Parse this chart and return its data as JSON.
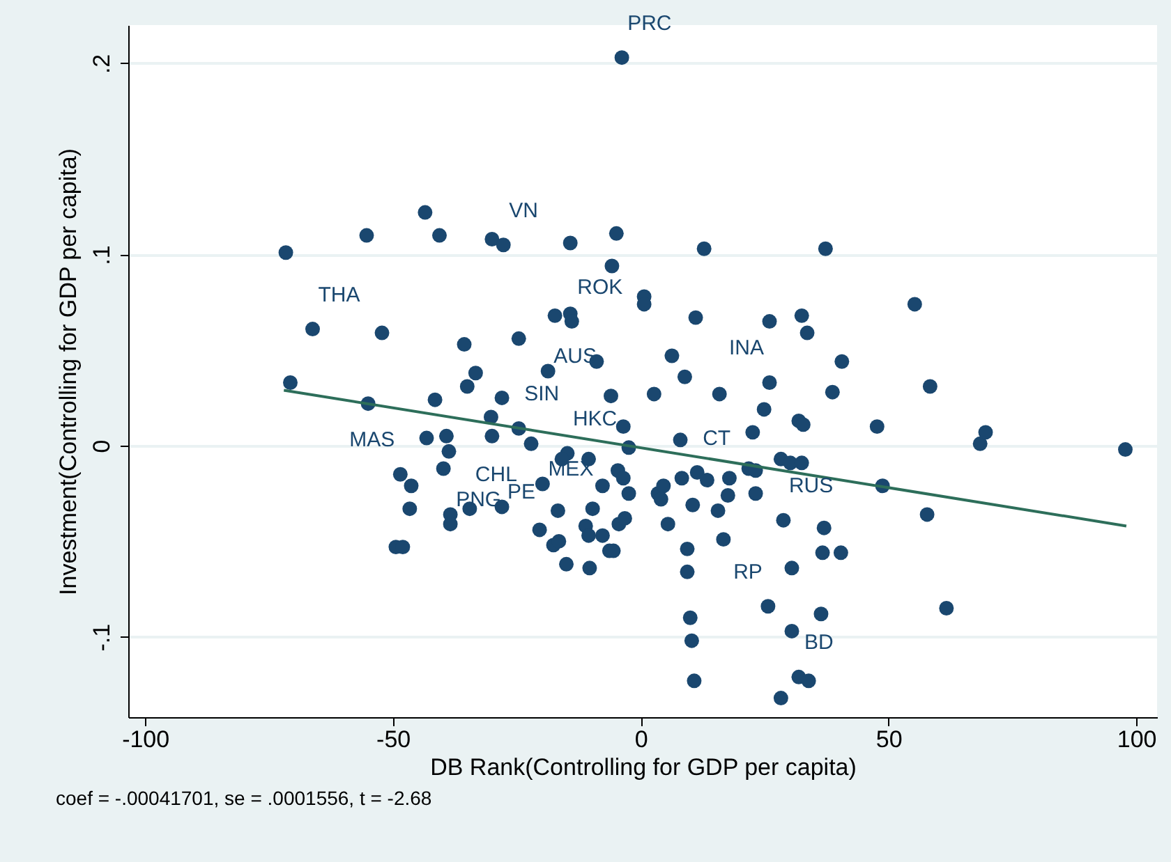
{
  "chart_data": {
    "type": "scatter",
    "xlabel": "DB Rank(Controlling for GDP per capita)",
    "ylabel": "Investment(Controlling for GDP per capita)",
    "xlim": [
      -103.4,
      104.2
    ],
    "ylim": [
      -0.142,
      0.22
    ],
    "xticks": [
      -100,
      -50,
      0,
      50,
      100
    ],
    "yticks": [
      {
        "value": -0.1,
        "label": "-.1"
      },
      {
        "value": 0,
        "label": "0"
      },
      {
        "value": 0.1,
        "label": ".1"
      },
      {
        "value": 0.2,
        "label": ".2"
      }
    ],
    "grid": "y",
    "series": [
      {
        "type": "scatter",
        "marker": "circle",
        "color": "#1a476f",
        "x": [
          -3.8,
          -71.6,
          -55.3,
          -43.5,
          -40.6,
          -30.0,
          -27.7,
          -14.2,
          -4.9,
          -5.8,
          0.7,
          0.7,
          -17.3,
          -14.2,
          -13.9,
          -66.2,
          -52.2,
          -35.6,
          -24.6,
          -8.9,
          -18.7,
          6.3,
          8.9,
          -70.7,
          -33.3,
          -35.0,
          -55.0,
          -41.5,
          -28.0,
          -6.0,
          2.7,
          -30.2,
          -3.5,
          -43.2,
          -39.2,
          -30.0,
          -24.6,
          -22.1,
          8.0,
          -38.7,
          -39.8,
          -48.5,
          -2.4,
          -14.8,
          -15.9,
          -10.5,
          -46.3,
          -46.6,
          -38.4,
          -38.4,
          -34.5,
          -28.0,
          -19.8,
          -49.4,
          -48.0,
          -20.4,
          -17.6,
          -16.5,
          -15.0,
          -16.7,
          -9.7,
          -11.1,
          -10.5,
          -7.7,
          -6.3,
          -5.5,
          -10.3,
          -7.7,
          -4.6,
          -3.5,
          -2.4,
          -4.4,
          -3.2,
          3.5,
          4.6,
          4.1,
          5.5,
          22.6,
          31.9,
          32.8,
          47.7,
          68.5,
          69.6,
          97.8,
          28.3,
          30.2,
          32.5,
          21.8,
          23.2,
          11.4,
          13.4,
          17.9,
          8.3,
          10.5,
          17.6,
          23.2,
          15.6,
          16.7,
          9.4,
          9.4,
          28.8,
          37.0,
          48.8,
          57.8,
          36.7,
          40.4,
          30.5,
          25.7,
          36.4,
          61.7,
          30.5,
          10.0,
          10.3,
          10.8,
          31.9,
          33.9,
          28.3,
          12.8,
          37.3,
          11.1,
          26.0,
          32.5,
          33.6,
          55.3,
          40.6,
          26.0,
          58.4,
          15.9,
          38.7,
          24.9
        ],
        "values": [
          0.203,
          0.101,
          0.11,
          0.122,
          0.11,
          0.108,
          0.105,
          0.106,
          0.111,
          0.094,
          0.078,
          0.074,
          0.068,
          0.069,
          0.065,
          0.061,
          0.059,
          0.053,
          0.056,
          0.044,
          0.039,
          0.047,
          0.036,
          0.033,
          0.038,
          0.031,
          0.022,
          0.024,
          0.025,
          0.026,
          0.027,
          0.015,
          0.01,
          0.004,
          0.005,
          0.005,
          0.009,
          0.001,
          0.003,
          -0.003,
          -0.012,
          -0.015,
          -0.001,
          -0.004,
          -0.007,
          -0.007,
          -0.021,
          -0.033,
          -0.036,
          -0.041,
          -0.033,
          -0.032,
          -0.02,
          -0.053,
          -0.053,
          -0.044,
          -0.052,
          -0.05,
          -0.062,
          -0.034,
          -0.033,
          -0.042,
          -0.047,
          -0.047,
          -0.055,
          -0.055,
          -0.064,
          -0.021,
          -0.013,
          -0.017,
          -0.025,
          -0.041,
          -0.038,
          -0.025,
          -0.021,
          -0.028,
          -0.041,
          0.007,
          0.013,
          0.011,
          0.01,
          0.001,
          0.007,
          -0.002,
          -0.007,
          -0.009,
          -0.009,
          -0.012,
          -0.013,
          -0.014,
          -0.018,
          -0.017,
          -0.017,
          -0.031,
          -0.026,
          -0.025,
          -0.034,
          -0.049,
          -0.054,
          -0.066,
          -0.039,
          -0.043,
          -0.021,
          -0.036,
          -0.056,
          -0.056,
          -0.064,
          -0.084,
          -0.088,
          -0.085,
          -0.097,
          -0.09,
          -0.102,
          -0.123,
          -0.121,
          -0.123,
          -0.132,
          0.103,
          0.103,
          0.067,
          0.065,
          0.068,
          0.059,
          0.074,
          0.044,
          0.033,
          0.031,
          0.027,
          0.028,
          0.019
        ]
      },
      {
        "type": "line",
        "color": "#2d6e5a",
        "x": [
          -72,
          98
        ],
        "values": [
          0.029,
          -0.042
        ]
      }
    ],
    "annotations": [
      "coef = -.00041701, se = .0001556, t = -2.68",
      {
        "text": "PRC",
        "x": -3.8,
        "y": 0.203
      },
      {
        "text": "VN",
        "x": -27.7,
        "y": 0.105
      },
      {
        "text": "ROK",
        "x": -13.9,
        "y": 0.065
      },
      {
        "text": "THA",
        "x": -66.2,
        "y": 0.061
      },
      {
        "text": "AUS",
        "x": -18.7,
        "y": 0.039
      },
      {
        "text": "INA",
        "x": 26.0,
        "y": 0.033
      },
      {
        "text": "SIN",
        "x": -24.6,
        "y": 0.009
      },
      {
        "text": "HKC",
        "x": -14.8,
        "y": -0.004
      },
      {
        "text": "MAS",
        "x": -48.5,
        "y": -0.015
      },
      {
        "text": "CT",
        "x": 11.4,
        "y": -0.014
      },
      {
        "text": "MEX",
        "x": -19.8,
        "y": -0.02
      },
      {
        "text": "CHL",
        "x": -34.5,
        "y": -0.033
      },
      {
        "text": "PE",
        "x": -28.0,
        "y": -0.032
      },
      {
        "text": "PNG",
        "x": -38.4,
        "y": -0.036
      },
      {
        "text": "RUS",
        "x": 28.8,
        "y": -0.039
      },
      {
        "text": "RP",
        "x": 25.7,
        "y": -0.084
      },
      {
        "text": "BD",
        "x": 31.9,
        "y": -0.121
      }
    ]
  }
}
